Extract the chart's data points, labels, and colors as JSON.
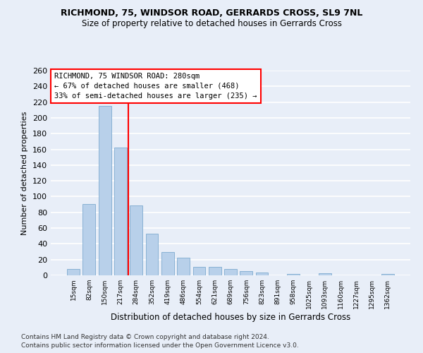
{
  "title": "RICHMOND, 75, WINDSOR ROAD, GERRARDS CROSS, SL9 7NL",
  "subtitle": "Size of property relative to detached houses in Gerrards Cross",
  "xlabel": "Distribution of detached houses by size in Gerrards Cross",
  "ylabel": "Number of detached properties",
  "footnote1": "Contains HM Land Registry data © Crown copyright and database right 2024.",
  "footnote2": "Contains public sector information licensed under the Open Government Licence v3.0.",
  "categories": [
    "15sqm",
    "82sqm",
    "150sqm",
    "217sqm",
    "284sqm",
    "352sqm",
    "419sqm",
    "486sqm",
    "554sqm",
    "621sqm",
    "689sqm",
    "756sqm",
    "823sqm",
    "891sqm",
    "958sqm",
    "1025sqm",
    "1093sqm",
    "1160sqm",
    "1227sqm",
    "1295sqm",
    "1362sqm"
  ],
  "values": [
    8,
    91,
    215,
    162,
    89,
    53,
    30,
    22,
    11,
    11,
    8,
    5,
    4,
    0,
    2,
    0,
    3,
    0,
    0,
    0,
    2
  ],
  "bar_color": "#b8d0ea",
  "bar_edgecolor": "#6ca0c8",
  "vline_x": 3.5,
  "vline_color": "red",
  "annotation_title": "RICHMOND, 75 WINDSOR ROAD: 280sqm",
  "annotation_line1": "← 67% of detached houses are smaller (468)",
  "annotation_line2": "33% of semi-detached houses are larger (235) →",
  "ylim": [
    0,
    260
  ],
  "yticks": [
    0,
    20,
    40,
    60,
    80,
    100,
    120,
    140,
    160,
    180,
    200,
    220,
    240,
    260
  ],
  "background_color": "#e8eef8",
  "grid_color": "#ffffff",
  "title_fontsize": 9,
  "subtitle_fontsize": 8.5,
  "ann_fontsize": 7.5,
  "ylabel_fontsize": 8,
  "xlabel_fontsize": 8.5,
  "footnote_fontsize": 6.5
}
